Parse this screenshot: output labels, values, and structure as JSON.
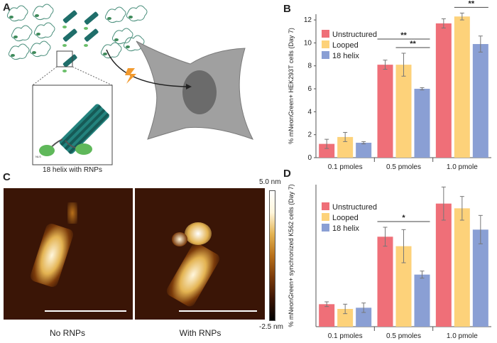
{
  "panels": {
    "a": "A",
    "b": "B",
    "c": "C",
    "d": "D"
  },
  "panel_a": {
    "inset_caption": "18 helix with RNPs",
    "rnp_label": "NLS",
    "icons": [
      "dna-origami-bundle-icon",
      "rnp-complex-icon",
      "cell-icon",
      "electroporation-bolt-icon",
      "nucleus-icon"
    ]
  },
  "panel_c": {
    "caption_left": "No RNPs",
    "caption_right": "With RNPs",
    "scale_max": "5.0 nm",
    "scale_min": "-2.5 nm",
    "colormap": [
      "#000000",
      "#3a1404",
      "#7a3a0a",
      "#b8701a",
      "#e3b352",
      "#fff6dc",
      "#ffffff"
    ]
  },
  "colors": {
    "unstructured": "#ef6f78",
    "looped": "#fdd27a",
    "helix18": "#8a9fd4"
  },
  "chart_data": [
    {
      "type": "bar",
      "ylabel": "% mNeonGreen+ HEK293T cells (Day 7)",
      "categories": [
        "0.1 pmoles",
        "0.5 pmoles",
        "1.0 pmole"
      ],
      "ylim": [
        0,
        12.5
      ],
      "yticks": [
        0,
        2,
        4,
        6,
        8,
        10,
        12
      ],
      "legend_position": "top-left",
      "series": [
        {
          "name": "Unstructured",
          "color": "#ef6f78",
          "values": [
            1.2,
            8.1,
            11.7
          ],
          "errors": [
            0.4,
            0.4,
            0.4
          ]
        },
        {
          "name": "Looped",
          "color": "#fdd27a",
          "values": [
            1.8,
            8.1,
            12.3
          ],
          "errors": [
            0.4,
            1.0,
            0.3
          ]
        },
        {
          "name": "18 helix",
          "color": "#8a9fd4",
          "values": [
            1.3,
            6.0,
            9.9
          ],
          "errors": [
            0.1,
            0.1,
            0.7
          ]
        }
      ],
      "significance": [
        {
          "category": 1,
          "from": 0,
          "to": 2,
          "label": "**"
        },
        {
          "category": 1,
          "from": 1,
          "to": 2,
          "label": "**"
        },
        {
          "category": 2,
          "from": 0,
          "to": 2,
          "label": "**"
        },
        {
          "category": 2,
          "from": 1,
          "to": 2,
          "label": "**"
        }
      ]
    },
    {
      "type": "bar",
      "ylabel": "% mNeonGreen+ synchronized K562 cells (Day 7)",
      "categories": [
        "0.1 pmoles",
        "0.5 pmoles",
        "1.0 pmole"
      ],
      "ylim": [
        0,
        6
      ],
      "yticks": [],
      "legend_position": "top-left",
      "series": [
        {
          "name": "Unstructured",
          "color": "#ef6f78",
          "values": [
            0.95,
            3.8,
            5.2
          ],
          "errors": [
            0.1,
            0.4,
            0.7
          ]
        },
        {
          "name": "Looped",
          "color": "#fdd27a",
          "values": [
            0.75,
            3.4,
            5.0
          ],
          "errors": [
            0.2,
            0.7,
            0.5
          ]
        },
        {
          "name": "18 helix",
          "color": "#8a9fd4",
          "values": [
            0.8,
            2.2,
            4.1
          ],
          "errors": [
            0.2,
            0.15,
            0.6
          ]
        }
      ],
      "significance": [
        {
          "category": 1,
          "from": 0,
          "to": 2,
          "label": "*"
        }
      ]
    }
  ]
}
